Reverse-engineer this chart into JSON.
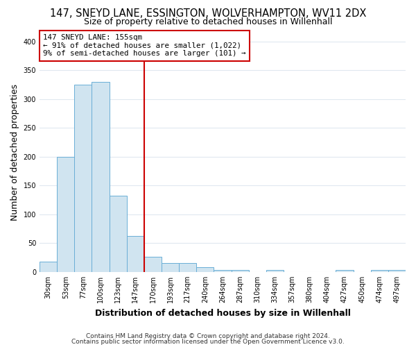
{
  "title": "147, SNEYD LANE, ESSINGTON, WOLVERHAMPTON, WV11 2DX",
  "subtitle": "Size of property relative to detached houses in Willenhall",
  "xlabel": "Distribution of detached houses by size in Willenhall",
  "ylabel": "Number of detached properties",
  "bin_labels": [
    "30sqm",
    "53sqm",
    "77sqm",
    "100sqm",
    "123sqm",
    "147sqm",
    "170sqm",
    "193sqm",
    "217sqm",
    "240sqm",
    "264sqm",
    "287sqm",
    "310sqm",
    "334sqm",
    "357sqm",
    "380sqm",
    "404sqm",
    "427sqm",
    "450sqm",
    "474sqm",
    "497sqm"
  ],
  "bar_values": [
    18,
    200,
    325,
    330,
    132,
    62,
    26,
    16,
    15,
    8,
    4,
    3,
    0,
    3,
    0,
    0,
    0,
    3,
    0,
    3,
    4
  ],
  "bar_color": "#d0e4f0",
  "bar_edge_color": "#6aaed6",
  "vline_x": 5.5,
  "vline_color": "#cc0000",
  "annotation_line1": "147 SNEYD LANE: 155sqm",
  "annotation_line2": "← 91% of detached houses are smaller (1,022)",
  "annotation_line3": "9% of semi-detached houses are larger (101) →",
  "annotation_box_color": "#cc0000",
  "ylim": [
    0,
    415
  ],
  "yticks": [
    0,
    50,
    100,
    150,
    200,
    250,
    300,
    350,
    400
  ],
  "background_color": "#ffffff",
  "grid_color": "#e0e8f0",
  "title_fontsize": 10.5,
  "subtitle_fontsize": 9,
  "axis_label_fontsize": 9,
  "tick_fontsize": 7,
  "footer_fontsize": 6.5,
  "footer_line1": "Contains HM Land Registry data © Crown copyright and database right 2024.",
  "footer_line2": "Contains public sector information licensed under the Open Government Licence v3.0."
}
